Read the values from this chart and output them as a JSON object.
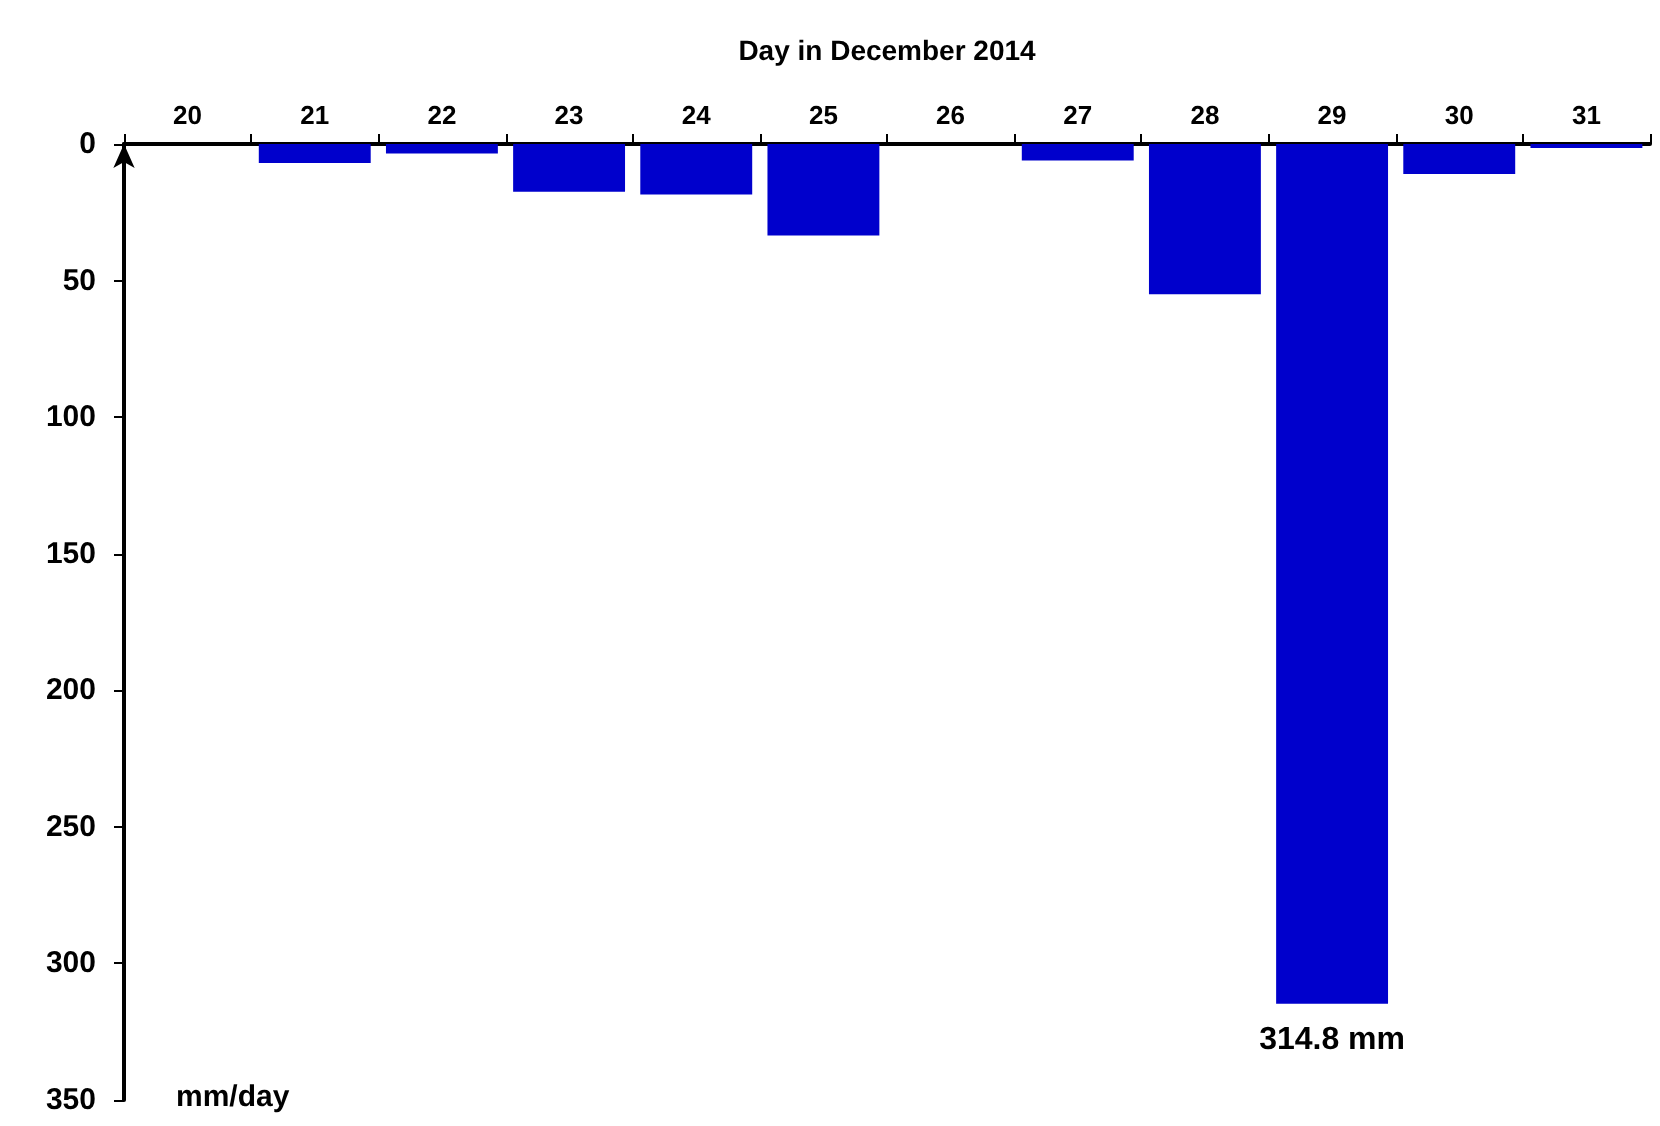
{
  "chart_data": {
    "type": "bar",
    "xlabel": "Day in December 2014",
    "ylabel": "mm/day",
    "categories": [
      "20",
      "21",
      "22",
      "23",
      "24",
      "25",
      "26",
      "27",
      "28",
      "29",
      "30",
      "31"
    ],
    "values": [
      0,
      7,
      3.5,
      17.5,
      18.5,
      33.5,
      0,
      6,
      55,
      314.8,
      11,
      1.5
    ],
    "color": "#0000cc",
    "ylim": [
      350,
      0
    ],
    "yticks": [
      0,
      50,
      100,
      150,
      200,
      250,
      300,
      350
    ],
    "grid": false,
    "annotations": [
      "314.8 mm"
    ]
  }
}
